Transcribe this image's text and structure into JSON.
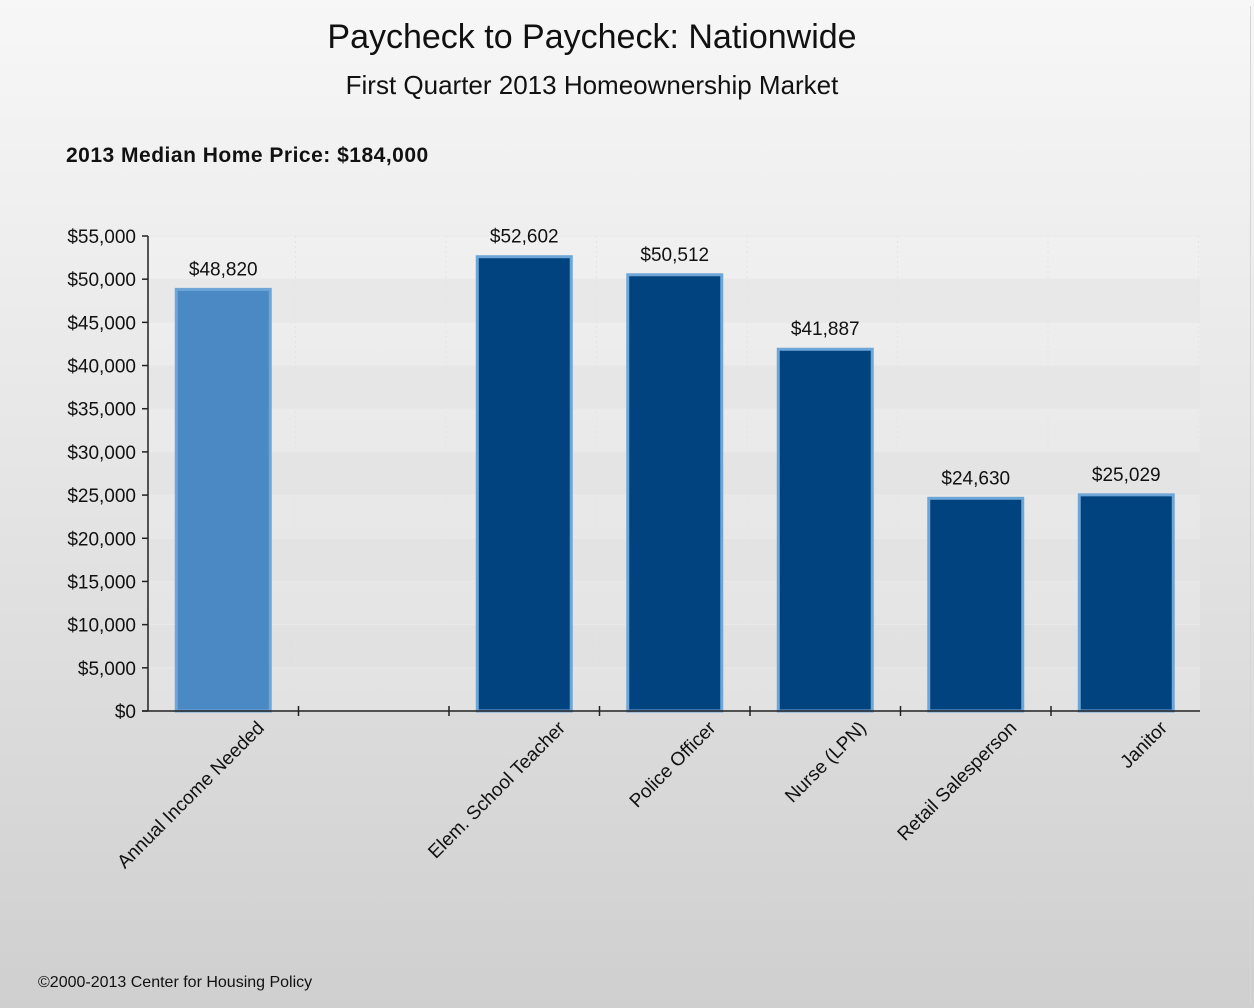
{
  "title": "Paycheck to Paycheck: Nationwide",
  "subtitle": "First Quarter 2013 Homeownership Market",
  "note": "2013 Median Home Price: $184,000",
  "footer": "©2000-2013 Center for Housing Policy",
  "colors": {
    "income_needed_bar": "#4a89c3",
    "occupation_bar": "#00437e",
    "bar_outline": "#6fa6d8",
    "axis": "#222222"
  },
  "chart_data": {
    "type": "bar",
    "categories": [
      "Annual Income Needed",
      "",
      "Elem. School Teacher",
      "Police Officer",
      "Nurse (LPN)",
      "Retail Salesperson",
      "Janitor"
    ],
    "values": [
      48820,
      null,
      52602,
      50512,
      41887,
      24630,
      25029
    ],
    "value_labels": [
      "$48,820",
      "",
      "$52,602",
      "$50,512",
      "$41,887",
      "$24,630",
      "$25,029"
    ],
    "ylim": [
      0,
      55000
    ],
    "yticks": [
      0,
      5000,
      10000,
      15000,
      20000,
      25000,
      30000,
      35000,
      40000,
      45000,
      50000,
      55000
    ],
    "ytick_labels": [
      "$0",
      "$5,000",
      "$10,000",
      "$15,000",
      "$20,000",
      "$25,000",
      "$30,000",
      "$35,000",
      "$40,000",
      "$45,000",
      "$50,000",
      "$55,000"
    ],
    "xlabel": "",
    "ylabel": "",
    "grid": true,
    "highlight_index": 0
  }
}
